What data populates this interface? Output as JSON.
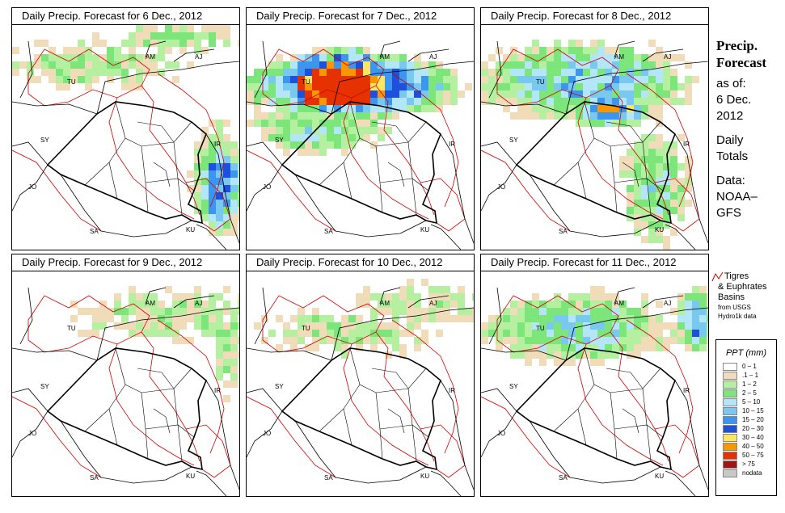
{
  "panels": [
    {
      "title": "Daily Precip. Forecast for  6 Dec., 2012",
      "pattern": "d6"
    },
    {
      "title": "Daily Precip. Forecast for  7 Dec., 2012",
      "pattern": "d7"
    },
    {
      "title": "Daily Precip. Forecast for  8 Dec., 2012",
      "pattern": "d8"
    },
    {
      "title": "Daily Precip. Forecast for  9 Dec., 2012",
      "pattern": "d9"
    },
    {
      "title": "Daily Precip. Forecast for  10 Dec., 2012",
      "pattern": "d10"
    },
    {
      "title": "Daily Precip. Forecast for  11 Dec., 2012",
      "pattern": "d11"
    }
  ],
  "map_labels": [
    "AM",
    "AJ",
    "TU",
    "SY",
    "IR",
    "JO",
    "SA",
    "KU"
  ],
  "sidebar": {
    "title_line1": "Precip.",
    "title_line2": "Forecast",
    "asof_line1": "as of:",
    "asof_line2": "6 Dec.",
    "asof_line3": "2012",
    "daily_line1": "Daily",
    "daily_line2": "Totals",
    "data_line1": "Data:",
    "data_line2": "NOAA–",
    "data_line3": "GFS"
  },
  "basin_legend": {
    "line1": "Tigres",
    "line2": "& Euphrates",
    "line3": "Basins",
    "line4": "from USGS",
    "line5": "Hydro1k data",
    "color": "#d00000"
  },
  "color_legend": {
    "title": "PPT (mm)",
    "items": [
      {
        "label": "0 – 1",
        "color": "#ffffff"
      },
      {
        "label": ".1 – 1",
        "color": "#f0dcb8"
      },
      {
        "label": "1 – 2",
        "color": "#b4f0a0"
      },
      {
        "label": "2 – 5",
        "color": "#7ce67a"
      },
      {
        "label": "5 – 10",
        "color": "#b4e6fa"
      },
      {
        "label": "10 – 15",
        "color": "#78c8f0"
      },
      {
        "label": "15 – 20",
        "color": "#3c96f0"
      },
      {
        "label": "20 – 30",
        "color": "#1e50dc"
      },
      {
        "label": "30 – 40",
        "color": "#fae664"
      },
      {
        "label": "40 – 50",
        "color": "#fa9600"
      },
      {
        "label": "50 – 75",
        "color": "#e63200"
      },
      {
        "label": "> 75",
        "color": "#a01414"
      },
      {
        "label": "nodata",
        "color": "#c8c8c8"
      }
    ]
  }
}
